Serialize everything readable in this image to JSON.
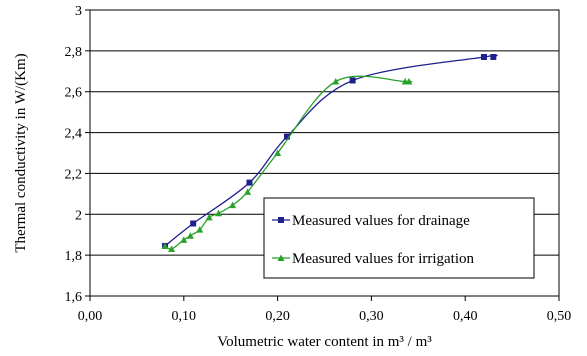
{
  "chart_data": {
    "type": "line",
    "xlabel": "Volumetric water content in m³ / m³",
    "ylabel": "Thermal conductivity in W/(Km)",
    "xlim": [
      0.0,
      0.5
    ],
    "ylim": [
      1.6,
      3.0
    ],
    "x_ticks": [
      "0,00",
      "0,10",
      "0,20",
      "0,30",
      "0,40",
      "0,50"
    ],
    "y_ticks": [
      "1,6",
      "1,8",
      "2",
      "2,2",
      "2,4",
      "2,6",
      "2,8",
      "3"
    ],
    "grid": "horizontal",
    "legend_position": "lower-right",
    "series": [
      {
        "name": "Measured values for drainage",
        "color": "#1f1f8f",
        "marker": "square",
        "smooth": true,
        "x": [
          0.08,
          0.11,
          0.17,
          0.21,
          0.28,
          0.42,
          0.43
        ],
        "y": [
          1.845,
          1.955,
          2.155,
          2.38,
          2.655,
          2.77,
          2.77
        ]
      },
      {
        "name": "Measured values for irrigation",
        "color": "#2aa12a",
        "marker": "triangle",
        "smooth": true,
        "x": [
          0.08,
          0.087,
          0.1,
          0.107,
          0.117,
          0.127,
          0.137,
          0.152,
          0.168,
          0.2,
          0.262,
          0.336,
          0.34
        ],
        "y": [
          1.845,
          1.83,
          1.875,
          1.895,
          1.925,
          1.985,
          2.005,
          2.045,
          2.11,
          2.3,
          2.65,
          2.65,
          2.65
        ]
      }
    ]
  }
}
